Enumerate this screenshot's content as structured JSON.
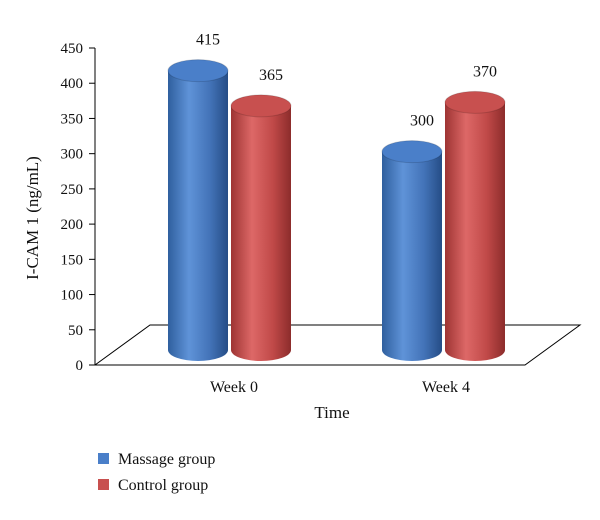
{
  "chart_data": {
    "type": "bar",
    "style": "3d-cylinder",
    "xlabel": "Time",
    "ylabel": "I-CAM 1 (ng/mL)",
    "categories": [
      "Week 0",
      "Week 4"
    ],
    "ylim": [
      0,
      450
    ],
    "yticks": [
      0,
      50,
      100,
      150,
      200,
      250,
      300,
      350,
      400,
      450
    ],
    "grid": false,
    "legend_position": "bottom-left",
    "series": [
      {
        "name": "Massage group",
        "values": [
          415,
          300
        ],
        "labels": [
          "415",
          "300"
        ],
        "color": "#4a7fc9"
      },
      {
        "name": "Control group",
        "values": [
          365,
          370
        ],
        "labels": [
          "365",
          "370"
        ],
        "color": "#c8504f"
      }
    ]
  }
}
